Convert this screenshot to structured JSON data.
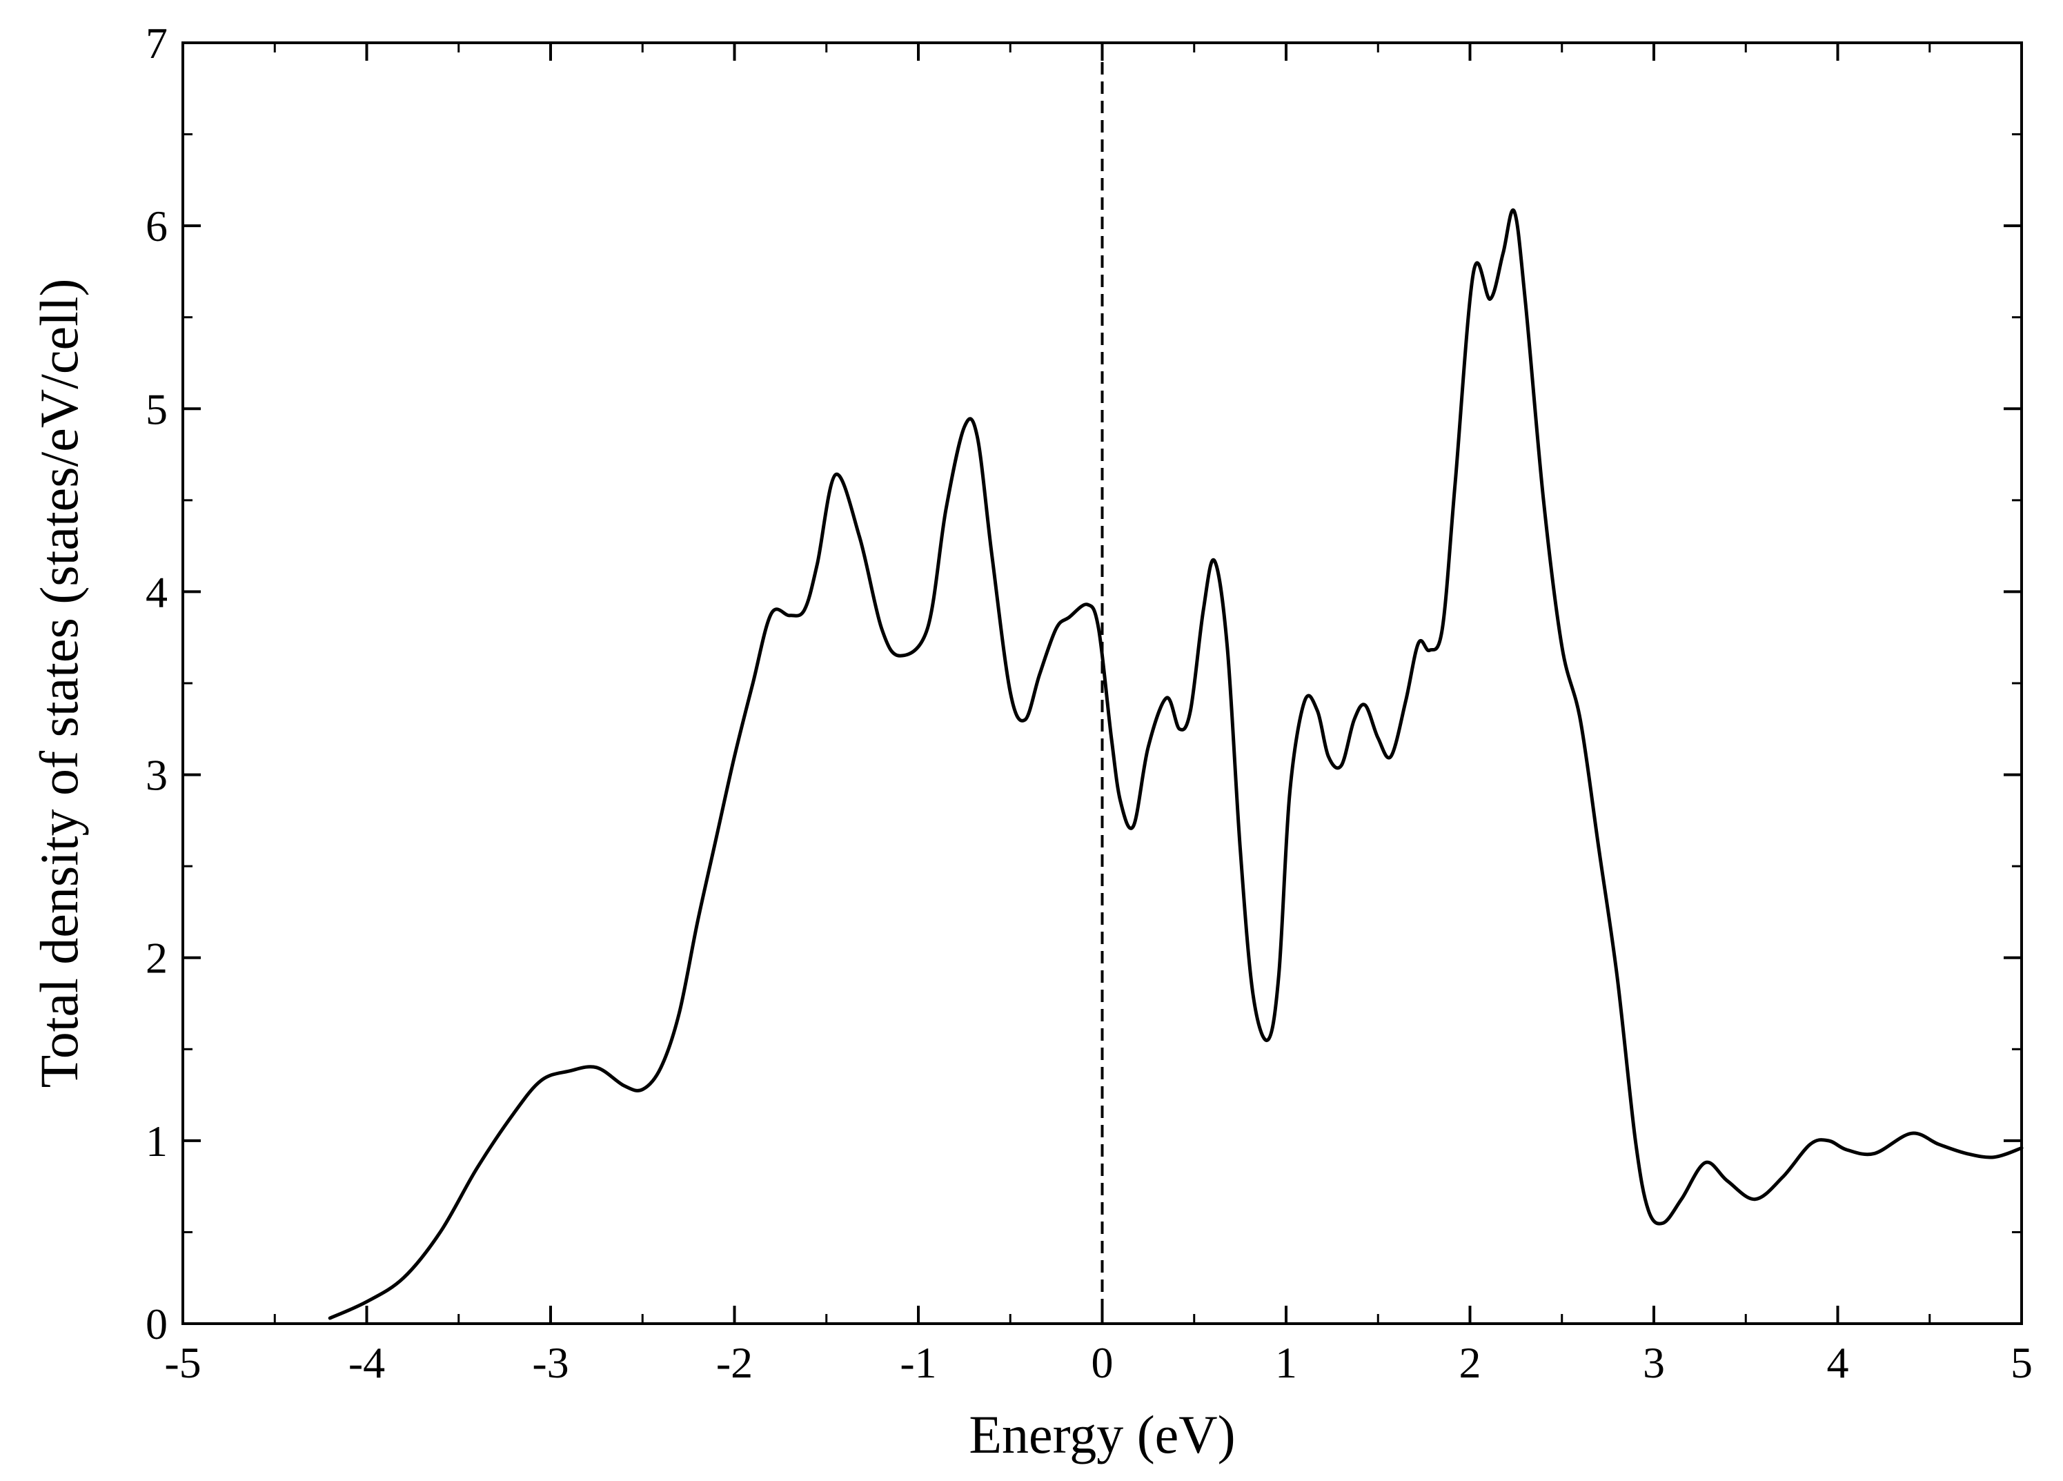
{
  "chart_data": {
    "type": "line",
    "title": "",
    "xlabel": "Energy (eV)",
    "ylabel": "Total density of states (states/eV/cell)",
    "xlim": [
      -5,
      5
    ],
    "ylim": [
      0,
      7
    ],
    "xticks": [
      -5,
      -4,
      -3,
      -2,
      -1,
      0,
      1,
      2,
      3,
      4,
      5
    ],
    "yticks": [
      0,
      1,
      2,
      3,
      4,
      5,
      6,
      7
    ],
    "x_tick_labels": [
      "-5",
      "-4",
      "-3",
      "-2",
      "-1",
      "0",
      "1",
      "2",
      "3",
      "4",
      "5"
    ],
    "y_tick_labels": [
      "0",
      "1",
      "2",
      "3",
      "4",
      "5",
      "6",
      "7"
    ],
    "minor_x_step": 0.5,
    "minor_y_step": 0.5,
    "grid": false,
    "reference_lines": [
      {
        "orientation": "vertical",
        "x": 0,
        "style": "dashed"
      }
    ],
    "series": [
      {
        "name": "Total DOS",
        "color": "#000000",
        "x": [
          -4.2,
          -4.0,
          -3.8,
          -3.6,
          -3.4,
          -3.2,
          -3.05,
          -2.9,
          -2.75,
          -2.6,
          -2.5,
          -2.4,
          -2.3,
          -2.2,
          -2.1,
          -2.0,
          -1.9,
          -1.8,
          -1.7,
          -1.62,
          -1.55,
          -1.45,
          -1.32,
          -1.2,
          -1.1,
          -0.95,
          -0.85,
          -0.75,
          -0.68,
          -0.6,
          -0.5,
          -0.42,
          -0.34,
          -0.25,
          -0.18,
          -0.08,
          -0.02,
          0.05,
          0.1,
          0.17,
          0.25,
          0.35,
          0.42,
          0.48,
          0.55,
          0.61,
          0.68,
          0.75,
          0.82,
          0.9,
          0.96,
          1.02,
          1.1,
          1.17,
          1.23,
          1.3,
          1.37,
          1.43,
          1.5,
          1.57,
          1.65,
          1.72,
          1.78,
          1.85,
          1.92,
          2.02,
          2.11,
          2.18,
          2.24,
          2.3,
          2.4,
          2.5,
          2.6,
          2.7,
          2.8,
          2.9,
          2.97,
          3.05,
          3.15,
          3.28,
          3.4,
          3.55,
          3.7,
          3.85,
          3.95,
          4.05,
          4.2,
          4.4,
          4.55,
          4.7,
          4.85,
          5.0
        ],
        "y": [
          0.03,
          0.12,
          0.25,
          0.5,
          0.85,
          1.15,
          1.33,
          1.38,
          1.4,
          1.3,
          1.28,
          1.4,
          1.7,
          2.2,
          2.65,
          3.1,
          3.5,
          3.88,
          3.87,
          3.9,
          4.15,
          4.64,
          4.3,
          3.8,
          3.65,
          3.8,
          4.45,
          4.9,
          4.85,
          4.2,
          3.45,
          3.3,
          3.55,
          3.8,
          3.86,
          3.93,
          3.8,
          3.2,
          2.85,
          2.72,
          3.15,
          3.42,
          3.25,
          3.35,
          3.9,
          4.17,
          3.7,
          2.6,
          1.8,
          1.55,
          1.9,
          2.9,
          3.4,
          3.35,
          3.1,
          3.05,
          3.3,
          3.38,
          3.2,
          3.1,
          3.4,
          3.72,
          3.68,
          3.8,
          4.6,
          5.75,
          5.6,
          5.85,
          6.08,
          5.6,
          4.5,
          3.7,
          3.3,
          2.6,
          1.9,
          1.0,
          0.62,
          0.55,
          0.68,
          0.88,
          0.78,
          0.68,
          0.8,
          0.98,
          1.0,
          0.95,
          0.93,
          1.04,
          0.98,
          0.93,
          0.91,
          0.96
        ]
      }
    ]
  }
}
